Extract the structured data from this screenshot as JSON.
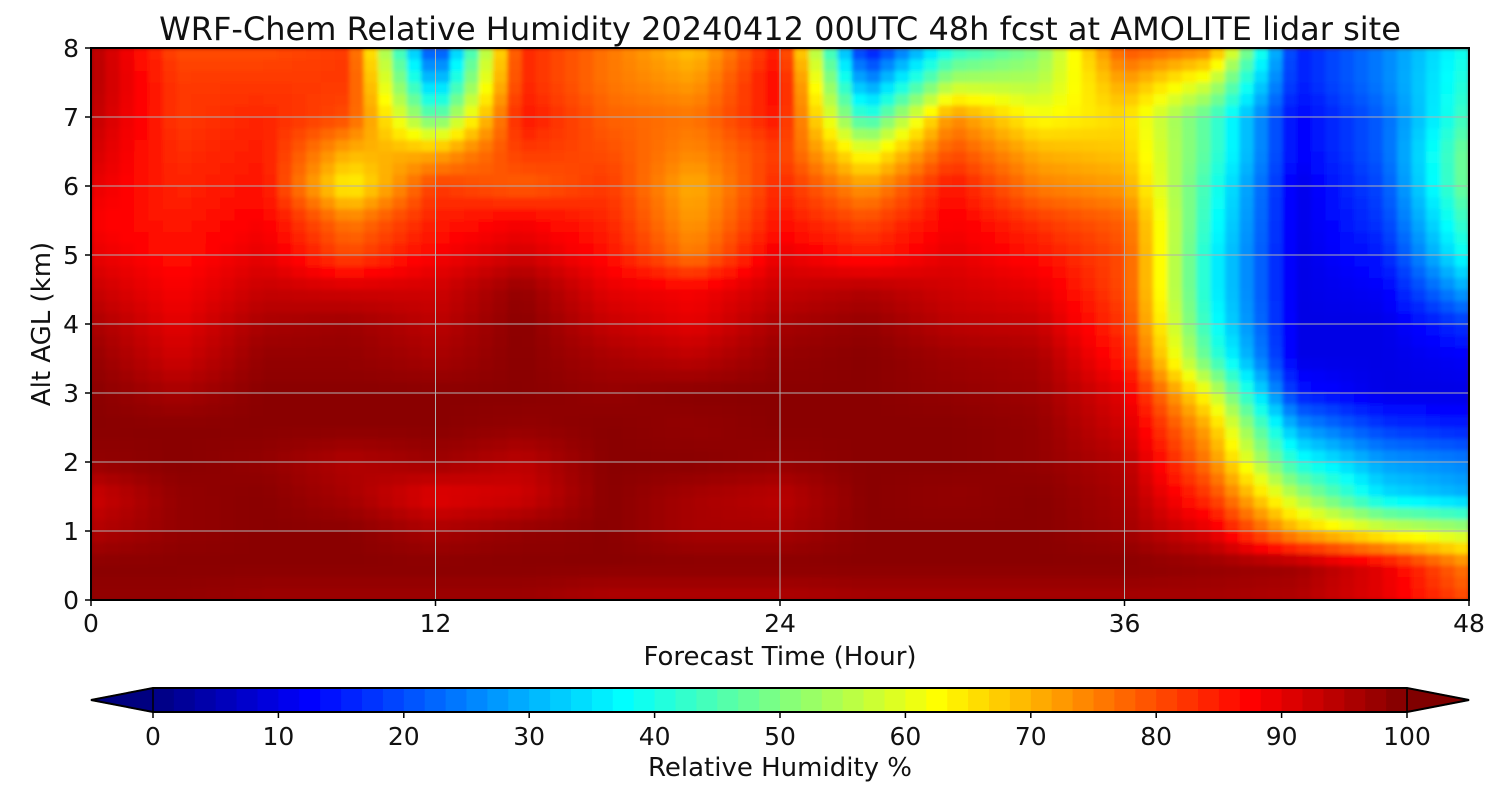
{
  "chart_data": {
    "type": "heatmap",
    "title": "WRF-Chem Relative Humidity 20240412 00UTC 48h fcst at AMOLITE lidar site",
    "xlabel": "Forecast Time (Hour)",
    "ylabel": "Alt AGL (km)",
    "xlim": [
      0,
      48
    ],
    "ylim": [
      0,
      8
    ],
    "xticks": [
      "0",
      "12",
      "24",
      "36",
      "48"
    ],
    "yticks": [
      "0",
      "1",
      "2",
      "3",
      "4",
      "5",
      "6",
      "7",
      "8"
    ],
    "grid": true,
    "colormap": "jet",
    "x": [
      0,
      3,
      6,
      9,
      12,
      15,
      18,
      21,
      24,
      27,
      30,
      33,
      36,
      39,
      42,
      45,
      48
    ],
    "y": [
      0,
      0.5,
      1,
      1.5,
      2,
      2.5,
      3,
      3.5,
      4,
      4.5,
      5,
      5.5,
      6,
      6.5,
      7,
      7.5,
      8
    ],
    "z_rows_by_altitude": [
      [
        98,
        98,
        97,
        97,
        97,
        97,
        95,
        95,
        95,
        96,
        96,
        96,
        96,
        96,
        95,
        90,
        80
      ],
      [
        99,
        99,
        99,
        99,
        99,
        99,
        99,
        99,
        99,
        99,
        99,
        99,
        99,
        98,
        97,
        90,
        75
      ],
      [
        95,
        98,
        99,
        99,
        96,
        98,
        99,
        96,
        96,
        99,
        99,
        99,
        97,
        90,
        70,
        60,
        55
      ],
      [
        92,
        98,
        99,
        96,
        90,
        92,
        99,
        96,
        94,
        99,
        98,
        99,
        96,
        82,
        55,
        35,
        30
      ],
      [
        98,
        99,
        98,
        95,
        97,
        94,
        99,
        99,
        98,
        99,
        99,
        98,
        95,
        75,
        40,
        28,
        25
      ],
      [
        99,
        99,
        99,
        99,
        99,
        98,
        99,
        98,
        99,
        99,
        99,
        98,
        92,
        70,
        28,
        18,
        15
      ],
      [
        99,
        96,
        99,
        99,
        99,
        99,
        98,
        99,
        99,
        99,
        98,
        97,
        90,
        60,
        15,
        10,
        10
      ],
      [
        98,
        92,
        98,
        98,
        96,
        99,
        96,
        94,
        98,
        99,
        97,
        96,
        85,
        45,
        10,
        10,
        12
      ],
      [
        96,
        90,
        96,
        97,
        94,
        99,
        93,
        90,
        96,
        98,
        94,
        93,
        82,
        40,
        10,
        10,
        18
      ],
      [
        93,
        88,
        93,
        92,
        92,
        98,
        90,
        88,
        93,
        95,
        92,
        90,
        80,
        38,
        10,
        12,
        30
      ],
      [
        90,
        86,
        90,
        80,
        88,
        92,
        86,
        75,
        90,
        85,
        90,
        86,
        80,
        38,
        10,
        15,
        40
      ],
      [
        88,
        85,
        88,
        75,
        85,
        88,
        84,
        72,
        86,
        80,
        88,
        82,
        78,
        40,
        10,
        18,
        45
      ],
      [
        90,
        84,
        86,
        62,
        82,
        78,
        82,
        70,
        84,
        72,
        86,
        75,
        72,
        42,
        10,
        20,
        50
      ],
      [
        92,
        83,
        85,
        70,
        70,
        82,
        80,
        74,
        82,
        60,
        80,
        70,
        68,
        45,
        12,
        22,
        50
      ],
      [
        94,
        82,
        84,
        80,
        45,
        86,
        78,
        76,
        86,
        40,
        74,
        62,
        66,
        45,
        12,
        22,
        45
      ],
      [
        95,
        82,
        82,
        82,
        28,
        84,
        76,
        72,
        88,
        25,
        55,
        55,
        72,
        58,
        15,
        25,
        42
      ],
      [
        95,
        80,
        80,
        82,
        15,
        84,
        76,
        68,
        86,
        12,
        40,
        50,
        80,
        75,
        15,
        25,
        40
      ]
    ],
    "colorbar": {
      "label": "Relative Humidity %",
      "ticks": [
        "0",
        "10",
        "20",
        "30",
        "40",
        "50",
        "60",
        "70",
        "80",
        "90",
        "100"
      ],
      "min": 0,
      "max": 100,
      "extend": "both"
    }
  }
}
